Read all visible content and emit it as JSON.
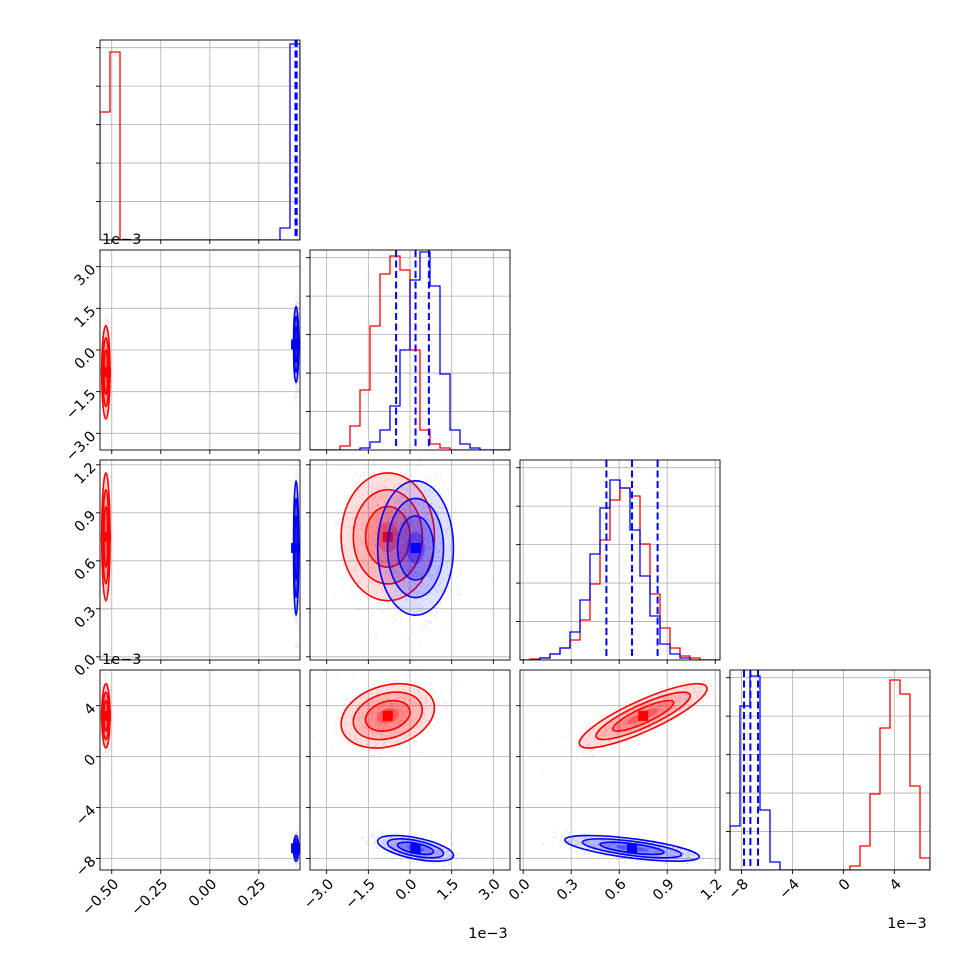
{
  "chart_data": {
    "type": "scatter",
    "kind": "corner-plot",
    "grid": true,
    "colors": {
      "red": "#ff0000",
      "blue": "#0000ff"
    },
    "series": [
      {
        "color": "red",
        "means": [
          -0.53,
          -0.0008,
          0.00075,
          0.0032
        ],
        "sds": [
          0.01,
          0.0008,
          0.00019,
          0.0012
        ],
        "rho": [
          0,
          0,
          0,
          0,
          0.25,
          0.85
        ]
      },
      {
        "color": "blue",
        "means": [
          0.44,
          0.0002,
          0.00068,
          -0.0072
        ],
        "sds": [
          0.006,
          0.00065,
          0.0002,
          0.00048
        ],
        "rho": [
          0,
          0,
          0,
          0,
          -0.55,
          -0.65
        ]
      }
    ],
    "quantile_lines": [
      {
        "color": "blue",
        "values": [
          0.437,
          0.44,
          0.443
        ]
      },
      {
        "color": "blue",
        "values": [
          -0.0005,
          0.0002,
          0.00068
        ]
      },
      {
        "color": "blue",
        "values": [
          0.00052,
          0.00068,
          0.00084
        ]
      },
      {
        "color": "blue",
        "values": [
          -0.0078,
          -0.0073,
          -0.0067
        ]
      }
    ],
    "diag_ranges": [
      [
        -0.56,
        0.46
      ],
      [
        -0.0036,
        0.0036
      ],
      [
        -2e-05,
        0.00123
      ],
      [
        -0.0089,
        0.0068
      ]
    ],
    "histograms": [
      {
        "color": "red",
        "values": [
          0.64,
          0.94,
          0,
          0,
          0,
          0,
          0,
          0,
          0,
          0,
          0,
          0,
          0,
          0,
          0,
          0,
          0,
          0,
          0,
          0
        ]
      },
      {
        "color": "blue",
        "values": [
          0,
          0,
          0,
          0,
          0,
          0,
          0,
          0,
          0,
          0,
          0,
          0,
          0,
          0,
          0,
          0,
          0,
          0,
          0.06,
          0.98
        ]
      },
      {
        "color": "red",
        "values": [
          0,
          0,
          0,
          0.02,
          0.12,
          0.3,
          0.62,
          0.88,
          0.97,
          0.9,
          0.5,
          0.1,
          0.03,
          0.01,
          0,
          0,
          0,
          0,
          0,
          0
        ]
      },
      {
        "color": "blue",
        "values": [
          0,
          0,
          0,
          0,
          0,
          0.01,
          0.04,
          0.1,
          0.22,
          0.5,
          0.85,
          0.99,
          0.82,
          0.38,
          0.1,
          0.03,
          0.01,
          0,
          0,
          0
        ]
      },
      {
        "color": "red",
        "values": [
          0,
          0.005,
          0.01,
          0.03,
          0.06,
          0.1,
          0.2,
          0.38,
          0.6,
          0.8,
          0.86,
          0.82,
          0.58,
          0.33,
          0.16,
          0.06,
          0.02,
          0.01,
          0,
          0
        ]
      },
      {
        "color": "blue",
        "values": [
          0,
          0,
          0.01,
          0.03,
          0.06,
          0.14,
          0.3,
          0.53,
          0.76,
          0.9,
          0.86,
          0.65,
          0.42,
          0.22,
          0.08,
          0.03,
          0.01,
          0,
          0,
          0
        ]
      },
      {
        "color": "red",
        "values": [
          0,
          0,
          0,
          0,
          0,
          0,
          0,
          0,
          0,
          0,
          0,
          0,
          0.02,
          0.12,
          0.38,
          0.71,
          0.95,
          0.88,
          0.42,
          0.06
        ]
      },
      {
        "color": "blue",
        "values": [
          0.22,
          0.82,
          0.97,
          0.3,
          0.04,
          0,
          0,
          0,
          0,
          0,
          0,
          0,
          0,
          0,
          0,
          0,
          0,
          0,
          0,
          0
        ]
      }
    ],
    "xticks": [
      {
        "v": -0.5,
        "label": "−0.50"
      },
      {
        "v": -0.25,
        "label": "−0.25"
      },
      {
        "v": 0,
        "label": "0.00"
      },
      {
        "v": 0.25,
        "label": "0.25"
      }
    ],
    "axis_ticks": [
      [],
      [
        {
          "v": -0.003,
          "label": "−3.0"
        },
        {
          "v": -0.0015,
          "label": "−1.5"
        },
        {
          "v": 0,
          "label": "0.0"
        },
        {
          "v": 0.0015,
          "label": "1.5"
        },
        {
          "v": 0.003,
          "label": "3.0"
        }
      ],
      [
        {
          "v": 0,
          "label": "0.0"
        },
        {
          "v": 0.0003,
          "label": "0.3"
        },
        {
          "v": 0.0006,
          "label": "0.6"
        },
        {
          "v": 0.0009,
          "label": "0.9"
        },
        {
          "v": 0.0012,
          "label": "1.2"
        }
      ],
      [
        {
          "v": -0.008,
          "label": "−8"
        },
        {
          "v": -0.004,
          "label": "−4"
        },
        {
          "v": 0,
          "label": "0"
        },
        {
          "v": 0.004,
          "label": "4"
        }
      ]
    ],
    "axis_offset_label": "1e−3"
  }
}
